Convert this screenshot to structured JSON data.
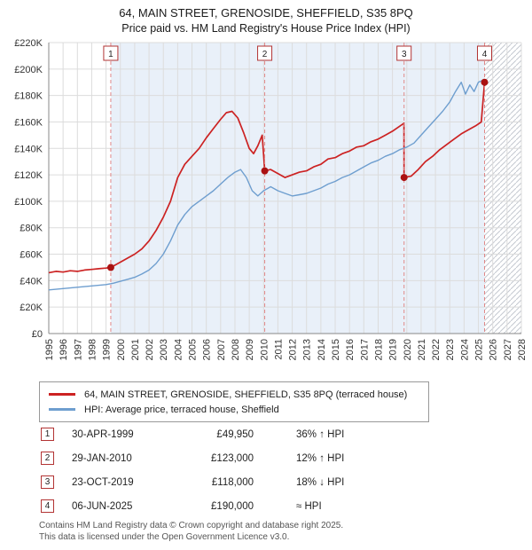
{
  "title": {
    "line1": "64, MAIN STREET, GRENOSIDE, SHEFFIELD, S35 8PQ",
    "line2": "Price paid vs. HM Land Registry's House Price Index (HPI)"
  },
  "chart_data": {
    "type": "line",
    "x_range": [
      1995,
      2028
    ],
    "y_range": [
      0,
      220000
    ],
    "x_ticks": [
      1995,
      1996,
      1997,
      1998,
      1999,
      2000,
      2001,
      2002,
      2003,
      2004,
      2005,
      2006,
      2007,
      2008,
      2009,
      2010,
      2011,
      2012,
      2013,
      2014,
      2015,
      2016,
      2017,
      2018,
      2019,
      2020,
      2021,
      2022,
      2023,
      2024,
      2025,
      2026,
      2027,
      2028
    ],
    "y_ticks": [
      {
        "v": 0,
        "label": "£0"
      },
      {
        "v": 20000,
        "label": "£20K"
      },
      {
        "v": 40000,
        "label": "£40K"
      },
      {
        "v": 60000,
        "label": "£60K"
      },
      {
        "v": 80000,
        "label": "£80K"
      },
      {
        "v": 100000,
        "label": "£100K"
      },
      {
        "v": 120000,
        "label": "£120K"
      },
      {
        "v": 140000,
        "label": "£140K"
      },
      {
        "v": 160000,
        "label": "£160K"
      },
      {
        "v": 180000,
        "label": "£180K"
      },
      {
        "v": 200000,
        "label": "£200K"
      },
      {
        "v": 220000,
        "label": "£220K"
      }
    ],
    "grid_color": "#dcdcdc",
    "axis_color": "#888888",
    "band_color": "#e9f0f9",
    "hatch_color": "#c4c8d0",
    "sale_line_color": "#e08888",
    "dot_color": "#aa1111",
    "box_border_color": "#b23333",
    "bands": [
      {
        "from": 1999.33,
        "to": 2025.43
      }
    ],
    "future_start": 2025.43,
    "series": [
      {
        "name": "64, MAIN STREET, GRENOSIDE, SHEFFIELD, S35 8PQ (terraced house)",
        "color": "#cc2222",
        "width": 1.7,
        "x": [
          1995.0,
          1995.5,
          1996.0,
          1996.5,
          1997.0,
          1997.5,
          1998.0,
          1998.5,
          1999.0,
          1999.33,
          2000.0,
          2000.5,
          2001.0,
          2001.5,
          2002.0,
          2002.5,
          2003.0,
          2003.5,
          2004.0,
          2004.5,
          2005.0,
          2005.5,
          2006.0,
          2006.5,
          2007.0,
          2007.4,
          2007.8,
          2008.2,
          2008.6,
          2009.0,
          2009.3,
          2009.6,
          2009.9,
          2010.08,
          2010.5,
          2011.0,
          2011.5,
          2012.0,
          2012.5,
          2013.0,
          2013.5,
          2014.0,
          2014.5,
          2015.0,
          2015.5,
          2016.0,
          2016.5,
          2017.0,
          2017.5,
          2018.0,
          2018.5,
          2019.0,
          2019.4,
          2019.8,
          2019.81,
          2020.3,
          2020.8,
          2021.3,
          2021.8,
          2022.3,
          2022.8,
          2023.3,
          2023.8,
          2024.3,
          2024.8,
          2025.2,
          2025.43
        ],
        "y": [
          46000,
          47000,
          46500,
          47500,
          47000,
          48000,
          48500,
          49000,
          49500,
          49950,
          54000,
          57000,
          60000,
          64000,
          70000,
          78000,
          88000,
          100000,
          118000,
          128000,
          134000,
          140000,
          148000,
          155000,
          162000,
          167000,
          168000,
          163000,
          152000,
          140000,
          136000,
          142000,
          150000,
          123000,
          124000,
          121000,
          118000,
          120000,
          122000,
          123000,
          126000,
          128000,
          132000,
          133000,
          136000,
          138000,
          141000,
          142000,
          145000,
          147000,
          150000,
          153000,
          156000,
          159000,
          118000,
          119000,
          124000,
          130000,
          134000,
          139000,
          143000,
          147000,
          151000,
          154000,
          157000,
          160000,
          190000
        ]
      },
      {
        "name": "HPI: Average price, terraced house, Sheffield",
        "color": "#6e9ecf",
        "width": 1.4,
        "x": [
          1995.0,
          1995.5,
          1996.0,
          1996.5,
          1997.0,
          1997.5,
          1998.0,
          1998.5,
          1999.0,
          1999.5,
          2000.0,
          2000.5,
          2001.0,
          2001.5,
          2002.0,
          2002.5,
          2003.0,
          2003.5,
          2004.0,
          2004.5,
          2005.0,
          2005.5,
          2006.0,
          2006.5,
          2007.0,
          2007.5,
          2008.0,
          2008.4,
          2008.8,
          2009.2,
          2009.6,
          2010.0,
          2010.5,
          2011.0,
          2011.5,
          2012.0,
          2012.5,
          2013.0,
          2013.5,
          2014.0,
          2014.5,
          2015.0,
          2015.5,
          2016.0,
          2016.5,
          2017.0,
          2017.5,
          2018.0,
          2018.5,
          2019.0,
          2019.5,
          2020.0,
          2020.5,
          2021.0,
          2021.5,
          2022.0,
          2022.5,
          2023.0,
          2023.4,
          2023.8,
          2024.1,
          2024.4,
          2024.7,
          2025.0,
          2025.43
        ],
        "y": [
          33000,
          33500,
          34000,
          34500,
          35000,
          35500,
          36000,
          36500,
          37000,
          38000,
          39500,
          41000,
          42500,
          45000,
          48000,
          53000,
          60000,
          70000,
          82000,
          90000,
          96000,
          100000,
          104000,
          108000,
          113000,
          118000,
          122000,
          124000,
          118000,
          108000,
          104000,
          108000,
          111000,
          108000,
          106000,
          104000,
          105000,
          106000,
          108000,
          110000,
          113000,
          115000,
          118000,
          120000,
          123000,
          126000,
          129000,
          131000,
          134000,
          136000,
          139000,
          141000,
          144000,
          150000,
          156000,
          162000,
          168000,
          175000,
          183000,
          190000,
          181000,
          188000,
          183000,
          190000,
          192000
        ]
      }
    ],
    "sales": [
      {
        "n": "1",
        "x": 1999.33,
        "y": 49950
      },
      {
        "n": "2",
        "x": 2010.08,
        "y": 123000
      },
      {
        "n": "3",
        "x": 2019.81,
        "y": 118000
      },
      {
        "n": "4",
        "x": 2025.43,
        "y": 190000
      }
    ]
  },
  "legend": {
    "items": [
      {
        "label": "64, MAIN STREET, GRENOSIDE, SHEFFIELD, S35 8PQ (terraced house)",
        "color": "#cc2222"
      },
      {
        "label": "HPI: Average price, terraced house, Sheffield",
        "color": "#6e9ecf"
      }
    ]
  },
  "table": {
    "rows": [
      {
        "n": "1",
        "date": "30-APR-1999",
        "price": "£49,950",
        "hpi": "36% ↑ HPI"
      },
      {
        "n": "2",
        "date": "29-JAN-2010",
        "price": "£123,000",
        "hpi": "12% ↑ HPI"
      },
      {
        "n": "3",
        "date": "23-OCT-2019",
        "price": "£118,000",
        "hpi": "18% ↓ HPI"
      },
      {
        "n": "4",
        "date": "06-JUN-2025",
        "price": "£190,000",
        "hpi": "≈ HPI"
      }
    ]
  },
  "footer": {
    "line1": "Contains HM Land Registry data © Crown copyright and database right 2025.",
    "line2": "This data is licensed under the Open Government Licence v3.0."
  }
}
